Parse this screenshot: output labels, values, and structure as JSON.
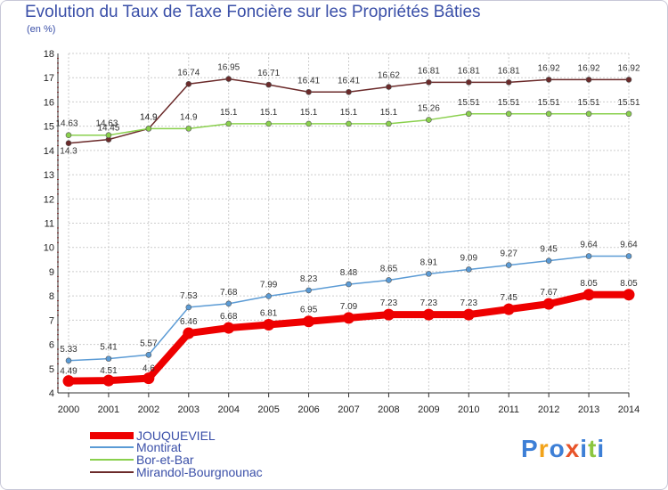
{
  "title": "Evolution du Taux de Taxe Foncière sur les Propriétés Bâties",
  "unit": "(en %)",
  "logo": "Proxiti",
  "chart_data": {
    "type": "line",
    "title": "Evolution du Taux de Taxe Foncière sur les Propriétés Bâties",
    "ylabel": "(en %)",
    "xlabel": "",
    "x": [
      "2000",
      "2001",
      "2002",
      "2003",
      "2004",
      "2005",
      "2006",
      "2007",
      "2008",
      "2009",
      "2010",
      "2011",
      "2012",
      "2013",
      "2014"
    ],
    "ylim": [
      4,
      18
    ],
    "yticks": [
      "4",
      "5",
      "6",
      "7",
      "8",
      "9",
      "10",
      "11",
      "12",
      "13",
      "14",
      "15",
      "16",
      "17",
      "18"
    ],
    "grid": true,
    "series": [
      {
        "name": "JOUQUEVIEL",
        "color": "#ee0000",
        "values": [
          4.49,
          4.51,
          4.6,
          6.46,
          6.68,
          6.81,
          6.95,
          7.09,
          7.23,
          7.23,
          7.23,
          7.45,
          7.67,
          8.05,
          8.05
        ],
        "labels": [
          "4.49",
          "4.51",
          "4.6",
          "6.46",
          "6.68",
          "6.81",
          "6.95",
          "7.09",
          "7.23",
          "7.23",
          "7.23",
          "7.45",
          "7.67",
          "8.05",
          "8.05"
        ]
      },
      {
        "name": "Montirat",
        "color": "#5b9bd5",
        "values": [
          5.33,
          5.41,
          5.57,
          7.53,
          7.68,
          7.99,
          8.23,
          8.48,
          8.65,
          8.91,
          9.09,
          9.27,
          9.45,
          9.64,
          9.64
        ],
        "labels": [
          "5.33",
          "5.41",
          "5.57",
          "7.53",
          "7.68",
          "7.99",
          "8.23",
          "8.48",
          "8.65",
          "8.91",
          "9.09",
          "9.27",
          "9.45",
          "9.64",
          "9.64"
        ]
      },
      {
        "name": "Bor-et-Bar",
        "color": "#8ad04d",
        "values": [
          14.63,
          14.63,
          14.9,
          14.9,
          15.1,
          15.1,
          15.1,
          15.1,
          15.1,
          15.26,
          15.51,
          15.51,
          15.51,
          15.51,
          15.51
        ],
        "labels": [
          "14.63",
          "14.63",
          "14.9",
          "14.9",
          "15.1",
          "15.1",
          "15.1",
          "15.1",
          "15.1",
          "15.26",
          "15.51",
          "15.51",
          "15.51",
          "15.51",
          "15.51"
        ]
      },
      {
        "name": "Mirandol-Bourgnounac",
        "color": "#6b2a2a",
        "values": [
          14.3,
          14.45,
          14.9,
          16.74,
          16.95,
          16.71,
          16.41,
          16.41,
          16.62,
          16.81,
          16.81,
          16.81,
          16.92,
          16.92,
          16.92
        ],
        "labels": [
          "14.3",
          "14.45",
          "14.9",
          "16.74",
          "16.95",
          "16.71",
          "16.41",
          "16.41",
          "16.62",
          "16.81",
          "16.81",
          "16.81",
          "16.92",
          "16.92",
          "16.92"
        ]
      }
    ],
    "legend": "bottom-left"
  }
}
